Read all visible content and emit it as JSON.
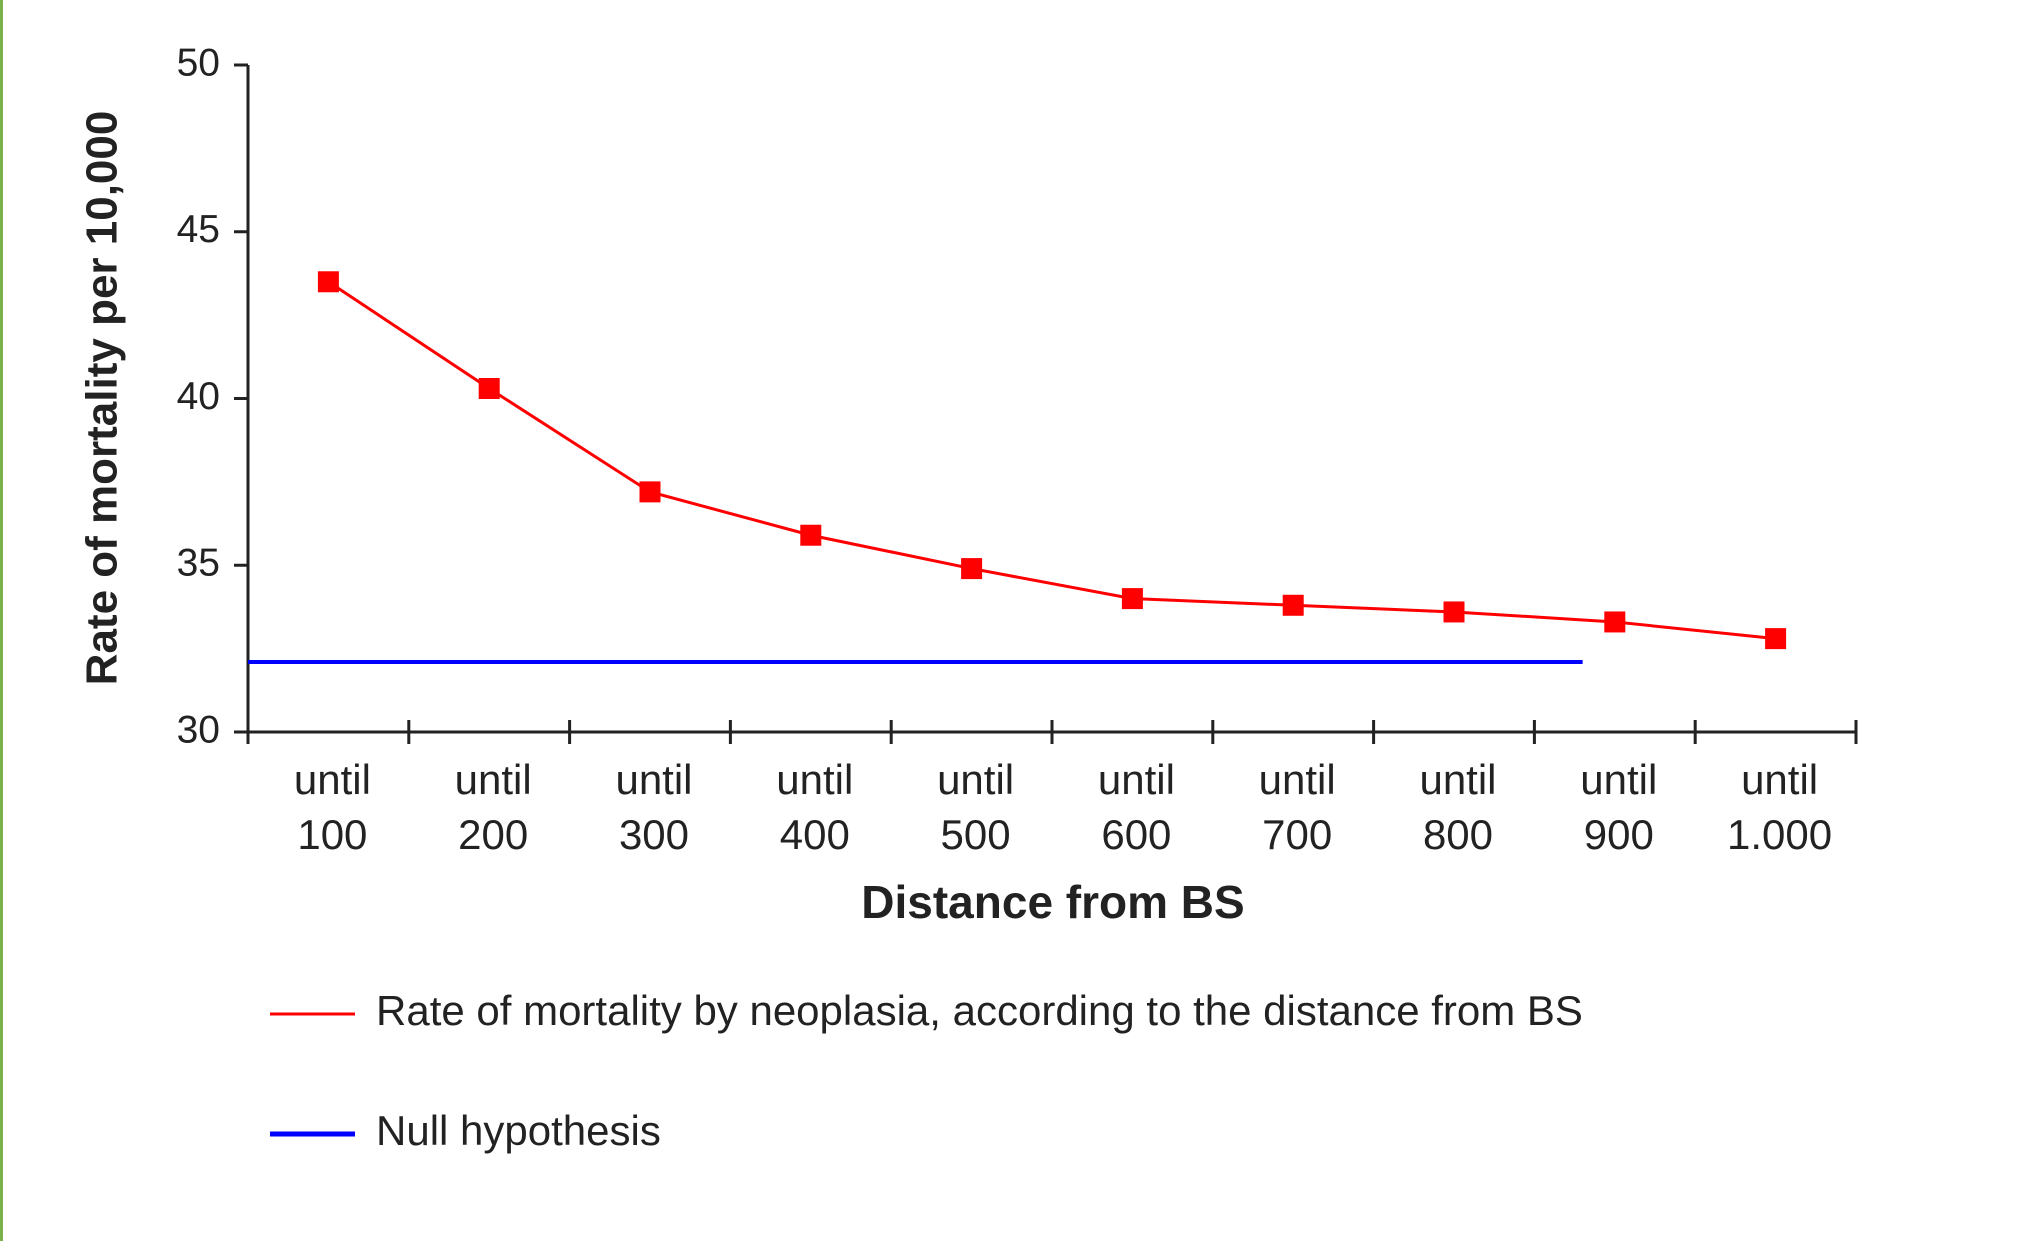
{
  "chart_data": {
    "type": "line",
    "x_label": "Distance from BS",
    "y_label": "Rate of mortality per 10,000",
    "categories": [
      "until 100",
      "until 200",
      "until 300",
      "until 400",
      "until 500",
      "until 600",
      "until 700",
      "until 800",
      "until 900",
      "until 1.000"
    ],
    "series": [
      {
        "name": "Rate of mortality by neoplasia, according to the distance from BS",
        "color": "#ff0000",
        "values": [
          43.5,
          40.3,
          37.2,
          35.9,
          34.9,
          34.0,
          33.8,
          33.6,
          33.3,
          32.8
        ]
      }
    ],
    "reference": {
      "name": "Null hypothesis",
      "color": "#0000ff",
      "value": 32.1
    },
    "ylim": [
      30,
      50
    ],
    "yticks": [
      30,
      35,
      40,
      45,
      50
    ]
  }
}
